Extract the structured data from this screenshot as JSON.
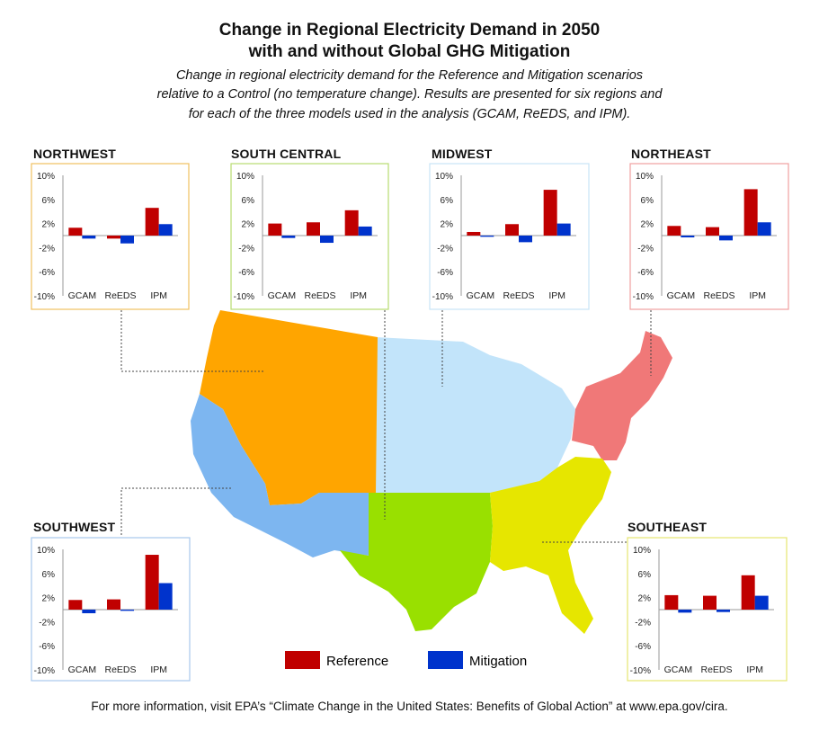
{
  "title_line1": "Change in Regional Electricity Demand in 2050",
  "title_line2": "with and without Global GHG Mitigation",
  "subtitle_line1": "Change in regional electricity demand for the Reference and Mitigation scenarios",
  "subtitle_line2": "relative to a Control (no temperature change). Results are presented for six regions and",
  "subtitle_line3": "for each of the three models used in the analysis (GCAM, ReEDS, and IPM).",
  "footer": "For more information, visit EPA’s “Climate Change in the United States: Benefits of Global Action” at www.epa.gov/cira.",
  "legend": {
    "reference": "Reference",
    "mitigation": "Mitigation"
  },
  "colors": {
    "reference": "#c00000",
    "mitigation": "#0033cc",
    "northwest": "#ffa500",
    "southwest": "#7db6f0",
    "south_central": "#99e000",
    "midwest": "#c2e4fa",
    "northeast": "#f07878",
    "southeast": "#e6e600"
  },
  "chart_data": [
    {
      "type": "bar",
      "title": "NORTHWEST",
      "categories": [
        "GCAM",
        "ReEDS",
        "IPM"
      ],
      "series": [
        {
          "name": "Reference",
          "values": [
            1.3,
            -0.5,
            4.6
          ]
        },
        {
          "name": "Mitigation",
          "values": [
            -0.5,
            -1.3,
            1.9
          ]
        }
      ],
      "yticks": [
        "10%",
        "6%",
        "2%",
        "-2%",
        "-6%",
        "-10%"
      ],
      "ylim": [
        -10,
        10
      ]
    },
    {
      "type": "bar",
      "title": "SOUTH CENTRAL",
      "categories": [
        "GCAM",
        "ReEDS",
        "IPM"
      ],
      "series": [
        {
          "name": "Reference",
          "values": [
            2.0,
            2.2,
            4.2
          ]
        },
        {
          "name": "Mitigation",
          "values": [
            -0.4,
            -1.2,
            1.5
          ]
        }
      ],
      "yticks": [
        "10%",
        "6%",
        "2%",
        "-2%",
        "-6%",
        "-10%"
      ],
      "ylim": [
        -10,
        10
      ]
    },
    {
      "type": "bar",
      "title": "MIDWEST",
      "categories": [
        "GCAM",
        "ReEDS",
        "IPM"
      ],
      "series": [
        {
          "name": "Reference",
          "values": [
            0.6,
            1.9,
            7.6
          ]
        },
        {
          "name": "Mitigation",
          "values": [
            -0.2,
            -1.1,
            2.0
          ]
        }
      ],
      "yticks": [
        "10%",
        "6%",
        "2%",
        "-2%",
        "-6%",
        "-10%"
      ],
      "ylim": [
        -10,
        10
      ]
    },
    {
      "type": "bar",
      "title": "NORTHEAST",
      "categories": [
        "GCAM",
        "ReEDS",
        "IPM"
      ],
      "series": [
        {
          "name": "Reference",
          "values": [
            1.6,
            1.4,
            7.7
          ]
        },
        {
          "name": "Mitigation",
          "values": [
            -0.3,
            -0.8,
            2.2
          ]
        }
      ],
      "yticks": [
        "10%",
        "6%",
        "2%",
        "-2%",
        "-6%",
        "-10%"
      ],
      "ylim": [
        -10,
        10
      ]
    },
    {
      "type": "bar",
      "title": "SOUTHWEST",
      "categories": [
        "GCAM",
        "ReEDS",
        "IPM"
      ],
      "series": [
        {
          "name": "Reference",
          "values": [
            1.6,
            1.7,
            9.1
          ]
        },
        {
          "name": "Mitigation",
          "values": [
            -0.6,
            -0.2,
            4.4
          ]
        }
      ],
      "yticks": [
        "10%",
        "6%",
        "2%",
        "-2%",
        "-6%",
        "-10%"
      ],
      "ylim": [
        -10,
        10
      ]
    },
    {
      "type": "bar",
      "title": "SOUTHEAST",
      "categories": [
        "GCAM",
        "ReEDS",
        "IPM"
      ],
      "series": [
        {
          "name": "Reference",
          "values": [
            2.4,
            2.3,
            5.7
          ]
        },
        {
          "name": "Mitigation",
          "values": [
            -0.5,
            -0.4,
            2.3
          ]
        }
      ],
      "yticks": [
        "10%",
        "6%",
        "2%",
        "-2%",
        "-6%",
        "-10%"
      ],
      "ylim": [
        -10,
        10
      ]
    }
  ]
}
